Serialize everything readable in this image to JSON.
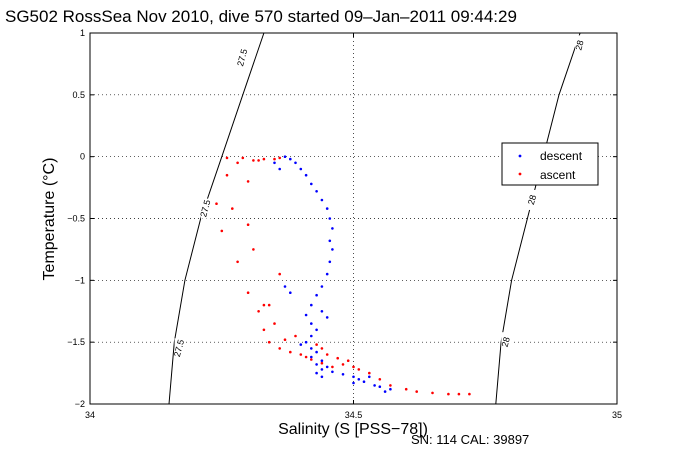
{
  "chart_data": {
    "type": "scatter",
    "title": "SG502 RossSea Nov 2010, dive 570 started 09–Jan–2011 09:44:29",
    "xlabel": "Salinity (S [PSS−78])",
    "ylabel": "Temperature (°C)",
    "xlim": [
      34,
      35
    ],
    "ylim": [
      -2,
      1
    ],
    "xticks": [
      34,
      34.5,
      35
    ],
    "xtick_labels": [
      "34",
      "34.5",
      "35"
    ],
    "yticks": [
      -2,
      -1.5,
      -1,
      -0.5,
      0,
      0.5,
      1
    ],
    "ytick_labels": [
      "−2",
      "−1.5",
      "−1",
      "−0.5",
      "0",
      "0.5",
      "1"
    ],
    "grid": true,
    "legend_position": "right",
    "footer": "SN: 114  CAL: 39897",
    "series": [
      {
        "name": "descent",
        "color": "#0000ff",
        "marker": "dot",
        "points": [
          [
            34.37,
            0.0
          ],
          [
            34.38,
            -0.02
          ],
          [
            34.39,
            -0.05
          ],
          [
            34.4,
            -0.1
          ],
          [
            34.41,
            -0.15
          ],
          [
            34.42,
            -0.22
          ],
          [
            34.43,
            -0.28
          ],
          [
            34.44,
            -0.35
          ],
          [
            34.45,
            -0.42
          ],
          [
            34.455,
            -0.5
          ],
          [
            34.46,
            -0.58
          ],
          [
            34.455,
            -0.68
          ],
          [
            34.46,
            -0.75
          ],
          [
            34.455,
            -0.85
          ],
          [
            34.45,
            -0.95
          ],
          [
            34.44,
            -1.05
          ],
          [
            34.43,
            -1.12
          ],
          [
            34.42,
            -1.2
          ],
          [
            34.41,
            -1.28
          ],
          [
            34.42,
            -1.35
          ],
          [
            34.43,
            -1.4
          ],
          [
            34.42,
            -1.45
          ],
          [
            34.41,
            -1.5
          ],
          [
            34.4,
            -1.52
          ],
          [
            34.42,
            -1.55
          ],
          [
            34.43,
            -1.58
          ],
          [
            34.42,
            -1.62
          ],
          [
            34.44,
            -1.65
          ],
          [
            34.43,
            -1.68
          ],
          [
            34.45,
            -1.7
          ],
          [
            34.44,
            -1.72
          ],
          [
            34.43,
            -1.75
          ],
          [
            34.44,
            -1.78
          ],
          [
            34.46,
            -1.74
          ],
          [
            34.48,
            -1.76
          ],
          [
            34.5,
            -1.78
          ],
          [
            34.51,
            -1.8
          ],
          [
            34.5,
            -1.83
          ],
          [
            34.52,
            -1.82
          ],
          [
            34.54,
            -1.85
          ],
          [
            34.53,
            -1.78
          ],
          [
            34.55,
            -1.86
          ],
          [
            34.57,
            -1.88
          ],
          [
            34.56,
            -1.9
          ],
          [
            34.45,
            -1.3
          ],
          [
            34.44,
            -1.25
          ],
          [
            34.38,
            -1.1
          ],
          [
            34.37,
            -1.05
          ],
          [
            34.36,
            -0.1
          ],
          [
            34.35,
            -0.05
          ]
        ]
      },
      {
        "name": "ascent",
        "color": "#ff0000",
        "marker": "dot",
        "points": [
          [
            34.28,
            -0.05
          ],
          [
            34.31,
            -0.03
          ],
          [
            34.33,
            -0.02
          ],
          [
            34.35,
            -0.02
          ],
          [
            34.36,
            -0.01
          ],
          [
            34.3,
            -0.2
          ],
          [
            34.27,
            -0.42
          ],
          [
            34.25,
            -0.6
          ],
          [
            34.28,
            -0.85
          ],
          [
            34.3,
            -1.1
          ],
          [
            34.32,
            -1.25
          ],
          [
            34.33,
            -1.4
          ],
          [
            34.34,
            -1.5
          ],
          [
            34.36,
            -1.55
          ],
          [
            34.38,
            -1.58
          ],
          [
            34.4,
            -1.6
          ],
          [
            34.42,
            -1.64
          ],
          [
            34.44,
            -1.67
          ],
          [
            34.46,
            -1.7
          ],
          [
            34.48,
            -1.68
          ],
          [
            34.5,
            -1.7
          ],
          [
            34.51,
            -1.72
          ],
          [
            34.53,
            -1.75
          ],
          [
            34.55,
            -1.8
          ],
          [
            34.57,
            -1.85
          ],
          [
            34.6,
            -1.88
          ],
          [
            34.62,
            -1.9
          ],
          [
            34.65,
            -1.91
          ],
          [
            34.68,
            -1.92
          ],
          [
            34.7,
            -1.92
          ],
          [
            34.72,
            -1.92
          ],
          [
            34.44,
            -1.55
          ],
          [
            34.43,
            -1.52
          ],
          [
            34.45,
            -1.6
          ],
          [
            34.47,
            -1.63
          ],
          [
            34.49,
            -1.65
          ],
          [
            34.36,
            -0.95
          ],
          [
            34.34,
            -1.2
          ],
          [
            34.39,
            -1.45
          ],
          [
            34.41,
            -1.62
          ],
          [
            34.32,
            -0.03
          ],
          [
            34.26,
            -0.01
          ],
          [
            34.29,
            -0.01
          ],
          [
            34.26,
            -0.15
          ],
          [
            34.24,
            -0.38
          ],
          [
            34.3,
            -0.55
          ],
          [
            34.31,
            -0.75
          ],
          [
            34.33,
            -1.2
          ],
          [
            34.35,
            -1.35
          ],
          [
            34.37,
            -1.48
          ]
        ]
      }
    ],
    "contours": [
      {
        "label": "27.5",
        "points": [
          [
            34.15,
            -2.0
          ],
          [
            34.16,
            -1.5
          ],
          [
            34.18,
            -1.0
          ],
          [
            34.21,
            -0.5
          ],
          [
            34.25,
            0.0
          ],
          [
            34.29,
            0.5
          ],
          [
            34.33,
            1.0
          ]
        ]
      },
      {
        "label": "28",
        "points": [
          [
            34.77,
            -2.0
          ],
          [
            34.78,
            -1.5
          ],
          [
            34.8,
            -1.0
          ],
          [
            34.83,
            -0.5
          ],
          [
            34.86,
            0.0
          ],
          [
            34.89,
            0.5
          ],
          [
            34.93,
            1.0
          ]
        ]
      }
    ],
    "contour_label_positions": [
      {
        "label": "27.5",
        "points": [
          [
            34.17,
            -1.55
          ],
          [
            34.22,
            -0.42
          ],
          [
            34.29,
            0.8
          ]
        ]
      },
      {
        "label": "28",
        "points": [
          [
            34.79,
            -1.5
          ],
          [
            34.84,
            -0.35
          ],
          [
            34.93,
            0.9
          ]
        ]
      }
    ]
  }
}
